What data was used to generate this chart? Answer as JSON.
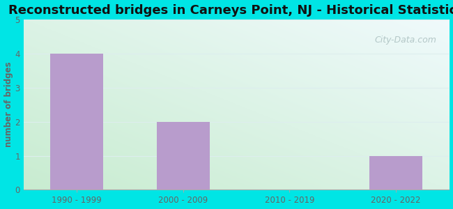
{
  "title": "Reconstructed bridges in Carneys Point, NJ - Historical Statistics",
  "categories": [
    "1990 - 1999",
    "2000 - 2009",
    "2010 - 2019",
    "2020 - 2022"
  ],
  "values": [
    4,
    2,
    0,
    1
  ],
  "bar_color": "#b89ccc",
  "ylabel": "number of bridges",
  "ylim": [
    0,
    5
  ],
  "yticks": [
    0,
    1,
    2,
    3,
    4,
    5
  ],
  "background_outer": "#00e5e5",
  "title_fontsize": 13,
  "axis_label_color": "#666666",
  "tick_label_color": "#666666",
  "watermark_text": "City-Data.com",
  "watermark_color": "#aabfbf",
  "grid_color": "#ddeeee",
  "bg_color_topleft": "#d8f0e0",
  "bg_color_topright": "#e8f8f8",
  "bg_color_bottomleft": "#c8ecd0",
  "bg_color_bottomright": "#ddf4f4"
}
